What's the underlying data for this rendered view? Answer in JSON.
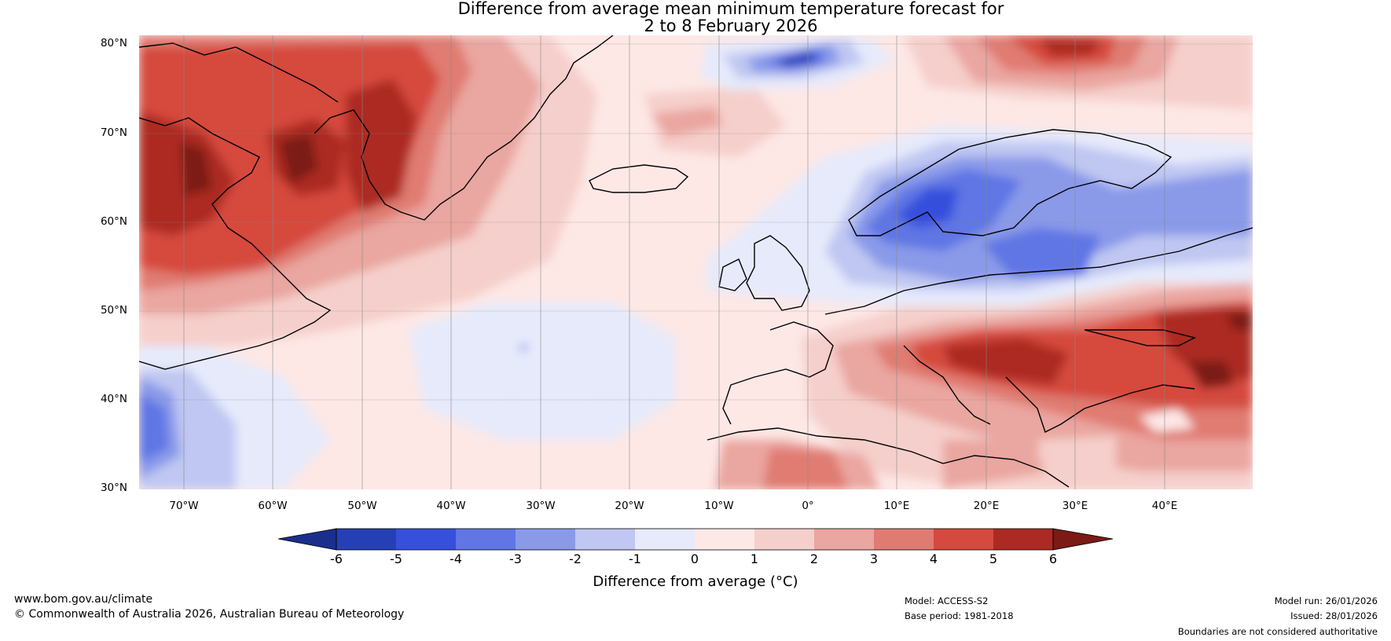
{
  "title_line1": "Difference from average mean minimum temperature forecast for",
  "title_line2": "2 to 8 February 2026",
  "lat_labels": [
    "80°N",
    "70°N",
    "60°N",
    "50°N",
    "40°N",
    "30°N"
  ],
  "lon_labels": [
    "70°W",
    "60°W",
    "50°W",
    "40°W",
    "30°W",
    "20°W",
    "10°W",
    "0°",
    "10°E",
    "20°E",
    "30°E",
    "40°E"
  ],
  "colorbar": {
    "ticks": [
      "-6",
      "-5",
      "-4",
      "-3",
      "-2",
      "-1",
      "0",
      "1",
      "2",
      "3",
      "4",
      "5",
      "6"
    ],
    "colors": [
      "#1a2f8c",
      "#2540b6",
      "#3650dc",
      "#5f76e4",
      "#8a9ae9",
      "#bfc7f2",
      "#e6eafb",
      "#fde8e6",
      "#f5cfcb",
      "#eaa6a0",
      "#e07b72",
      "#d6493e",
      "#ac2a23",
      "#7c1a16"
    ],
    "label": "Difference from average (°C)"
  },
  "footer": {
    "url": "www.bom.gov.au/climate",
    "copyright": "© Commonwealth of Australia 2026, Australian Bureau of Meteorology",
    "model": "Model: ACCESS-S2",
    "base_period": "Base period: 1981-2018",
    "model_run": "Model run: 26/01/2026",
    "issued": "Issued: 28/01/2026",
    "disclaimer": "Boundaries are not considered authoritative"
  }
}
